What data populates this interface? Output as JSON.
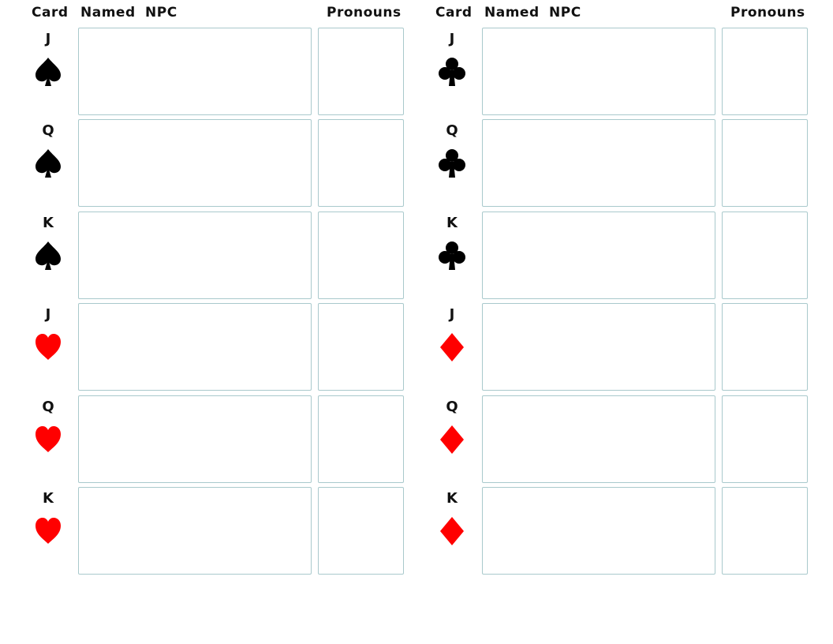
{
  "headers": {
    "card": "Card",
    "named_npc": "Named NPC",
    "pronouns": "Pronouns"
  },
  "colors": {
    "black_suit": "#000000",
    "red_suit": "#ff0000",
    "box_border": "#a9c9cc"
  },
  "left_rows": [
    {
      "rank": "J",
      "suit": "spade-icon"
    },
    {
      "rank": "Q",
      "suit": "spade-icon"
    },
    {
      "rank": "K",
      "suit": "spade-icon"
    },
    {
      "rank": "J",
      "suit": "heart-icon"
    },
    {
      "rank": "Q",
      "suit": "heart-icon"
    },
    {
      "rank": "K",
      "suit": "heart-icon"
    }
  ],
  "right_rows": [
    {
      "rank": "J",
      "suit": "club-icon"
    },
    {
      "rank": "Q",
      "suit": "club-icon"
    },
    {
      "rank": "K",
      "suit": "club-icon"
    },
    {
      "rank": "J",
      "suit": "diamond-icon"
    },
    {
      "rank": "Q",
      "suit": "diamond-icon"
    },
    {
      "rank": "K",
      "suit": "diamond-icon"
    }
  ]
}
